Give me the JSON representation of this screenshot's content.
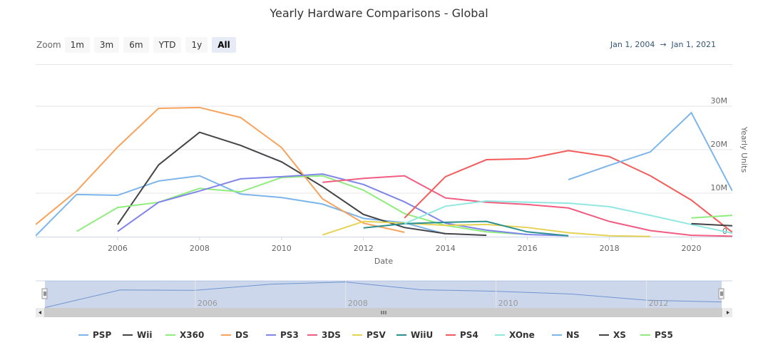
{
  "title": "Yearly Hardware Comparisons - Global",
  "zoom": {
    "label": "Zoom",
    "buttons": [
      "1m",
      "3m",
      "6m",
      "YTD",
      "1y",
      "All"
    ],
    "active": "All"
  },
  "range": {
    "from": "Jan 1, 2004",
    "arrow": "→",
    "to": "Jan 1, 2021"
  },
  "navigator": {
    "labels": [
      "2006",
      "2008",
      "2010",
      "2012",
      "2..."
    ]
  },
  "chart_data": {
    "type": "line",
    "title": "Yearly Hardware Comparisons - Global",
    "xlabel": "Date",
    "ylabel": "Yearly Units",
    "xlim": [
      2004,
      2021
    ],
    "ylim": [
      0,
      40
    ],
    "xticks": [
      "2006",
      "2008",
      "2010",
      "2012",
      "2014",
      "2016",
      "2018",
      "2020"
    ],
    "yticks": [
      {
        "v": 0,
        "label": "0"
      },
      {
        "v": 10,
        "label": "10M"
      },
      {
        "v": 20,
        "label": "20M"
      },
      {
        "v": 30,
        "label": "30M"
      }
    ],
    "legend_position": "bottom",
    "series": [
      {
        "name": "PSP",
        "color": "#7cb5ec",
        "start": 2004,
        "values": [
          0.2,
          9.7,
          9.5,
          12.8,
          14,
          9.8,
          9,
          7.5,
          4.2,
          3.2,
          0.6
        ]
      },
      {
        "name": "Wii",
        "color": "#434348",
        "start": 2006,
        "values": [
          2.8,
          16.5,
          24,
          21,
          17.2,
          11.5,
          5.1,
          2.1,
          0.7,
          0.3
        ]
      },
      {
        "name": "X360",
        "color": "#90ed7d",
        "start": 2005,
        "values": [
          1.2,
          6.7,
          7.9,
          11.1,
          10.3,
          13.6,
          14,
          10.7,
          5.3,
          2.6,
          1.1,
          0.5
        ]
      },
      {
        "name": "DS",
        "color": "#f7a35c",
        "start": 2004,
        "values": [
          2.8,
          10.5,
          20.6,
          29.5,
          29.7,
          27.4,
          20.5,
          8.7,
          3.1,
          1
        ]
      },
      {
        "name": "PS3",
        "color": "#8085e9",
        "start": 2006,
        "values": [
          1.2,
          7.9,
          10.5,
          13.3,
          13.8,
          14.4,
          12,
          8,
          3.1,
          1.5,
          0.5,
          0.2
        ]
      },
      {
        "name": "3DS",
        "color": "#f15c80",
        "start": 2011,
        "values": [
          12.5,
          13.4,
          14,
          8.9,
          7.9,
          7.4,
          6.6,
          3.5,
          1.4,
          0.3,
          0.1
        ]
      },
      {
        "name": "PSV",
        "color": "#e4d354",
        "start": 2011,
        "values": [
          0.4,
          3.5,
          3.1,
          2.6,
          2.8,
          2.1,
          0.9,
          0.2,
          0.05
        ]
      },
      {
        "name": "WiiU",
        "color": "#2b908f",
        "start": 2012,
        "values": [
          2,
          3,
          3.3,
          3.5,
          1.1,
          0.2
        ]
      },
      {
        "name": "PS4",
        "color": "#f45b5b",
        "start": 2013,
        "values": [
          4.3,
          13.8,
          17.7,
          17.9,
          19.8,
          18.4,
          14,
          8.4,
          1
        ]
      },
      {
        "name": "XOne",
        "color": "#91e8e1",
        "start": 2013,
        "values": [
          3,
          7,
          8.2,
          7.9,
          7.7,
          6.9,
          4.9,
          2.8,
          0.8
        ]
      },
      {
        "name": "NS",
        "color": "#7cb5ec",
        "start": 2017,
        "values": [
          13.1,
          16.4,
          19.5,
          28.5,
          10.5
        ]
      },
      {
        "name": "XS",
        "color": "#434348",
        "start": 2020,
        "values": [
          3,
          2.5
        ]
      },
      {
        "name": "PS5",
        "color": "#90ed7d",
        "start": 2020,
        "values": [
          4.3,
          4.9
        ]
      }
    ]
  }
}
